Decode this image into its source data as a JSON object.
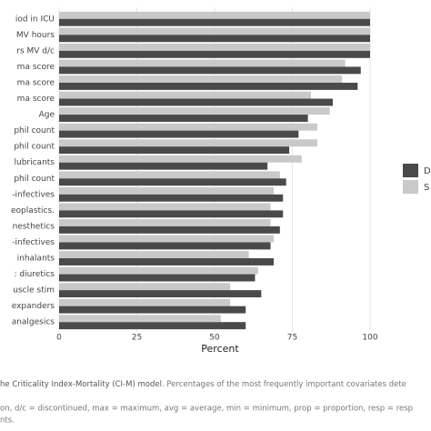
{
  "chart_data": {
    "type": "bar",
    "orientation": "horizontal",
    "categories": [
      "iod in ICU",
      "MV hours",
      "rs MV d/c",
      "ma score",
      "ma score",
      "ma score",
      "Age",
      "phil count",
      "phil count",
      "lubricants",
      "phil count",
      "-infectives",
      "eoplastics.",
      "nesthetics",
      "-infectives",
      "inhalants",
      ": diuretics",
      "uscle stim",
      "expanders",
      "analgesics"
    ],
    "series": [
      {
        "name": "D",
        "color": "#4a4a4a",
        "values": [
          100,
          100,
          100,
          97,
          96,
          88,
          80,
          77,
          74,
          67,
          73,
          72,
          72,
          71,
          68,
          69,
          63,
          65,
          60,
          60
        ]
      },
      {
        "name": "S",
        "color": "#c9c9c9",
        "values": [
          100,
          100,
          100,
          92,
          91,
          81,
          87,
          83,
          83,
          78,
          71,
          69,
          68,
          68,
          69,
          61,
          64,
          55,
          55,
          52
        ]
      }
    ],
    "xlim": [
      0,
      100
    ],
    "xticks": [
      0,
      25,
      50,
      75,
      100
    ],
    "xlabel": "Percent",
    "grid": true
  },
  "caption": {
    "lead": "he Criticality Index-Mortality (CI-M) model",
    "line1": ". Percentages of the most frequently important covariates dete",
    "line2": "on,  d/c = discontinued,  max = maximum,  avg = average,  min = minimum,  prop = proportion,  resp = resp",
    "line3": "nts."
  }
}
